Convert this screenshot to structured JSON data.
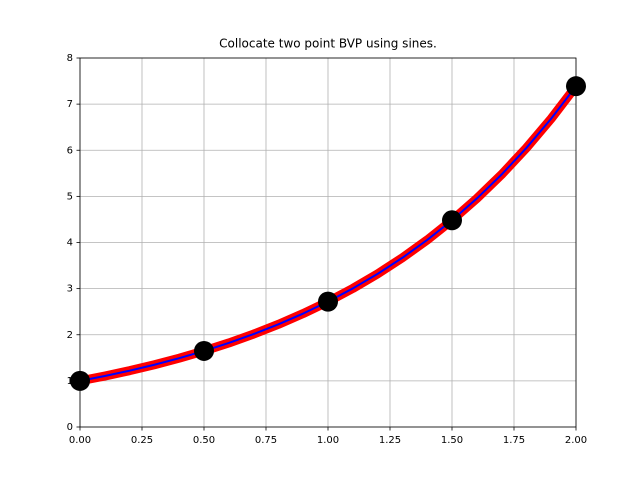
{
  "chart_data": {
    "type": "line",
    "title": "Collocate two point BVP using sines.",
    "series": [
      {
        "color": "#ff0000",
        "style": "line",
        "x": [
          0,
          0.1,
          0.2,
          0.3,
          0.4,
          0.5,
          0.6,
          0.7,
          0.8,
          0.9,
          1.0,
          1.1,
          1.2,
          1.3,
          1.4,
          1.5,
          1.6,
          1.7,
          1.8,
          1.9,
          2.0
        ],
        "values": [
          1,
          1.105,
          1.221,
          1.35,
          1.492,
          1.649,
          1.822,
          2.014,
          2.226,
          2.46,
          2.718,
          3.004,
          3.32,
          3.669,
          4.055,
          4.482,
          4.953,
          5.474,
          6.05,
          6.686,
          7.389
        ]
      },
      {
        "color": "#0000ff",
        "style": "line",
        "x": [
          0,
          0.1,
          0.2,
          0.3,
          0.4,
          0.5,
          0.6,
          0.7,
          0.8,
          0.9,
          1.0,
          1.1,
          1.2,
          1.3,
          1.4,
          1.5,
          1.6,
          1.7,
          1.8,
          1.9,
          2.0
        ],
        "values": [
          1,
          1.105,
          1.221,
          1.35,
          1.492,
          1.649,
          1.822,
          2.014,
          2.226,
          2.46,
          2.718,
          3.004,
          3.32,
          3.669,
          4.055,
          4.482,
          4.953,
          5.474,
          6.05,
          6.686,
          7.389
        ]
      },
      {
        "color": "#000000",
        "style": "marker",
        "x": [
          0,
          0.5,
          1.0,
          1.5,
          2.0
        ],
        "values": [
          1,
          1.649,
          2.718,
          4.482,
          7.389
        ]
      }
    ],
    "xlim": [
      0,
      2
    ],
    "ylim": [
      0,
      8
    ],
    "xticks": [
      {
        "value": 0,
        "label": "0.00"
      },
      {
        "value": 0.25,
        "label": "0.25"
      },
      {
        "value": 0.5,
        "label": "0.50"
      },
      {
        "value": 0.75,
        "label": "0.75"
      },
      {
        "value": 1,
        "label": "1.00"
      },
      {
        "value": 1.25,
        "label": "1.25"
      },
      {
        "value": 1.5,
        "label": "1.50"
      },
      {
        "value": 1.75,
        "label": "1.75"
      },
      {
        "value": 2,
        "label": "2.00"
      }
    ],
    "yticks": [
      0,
      1,
      2,
      3,
      4,
      5,
      6,
      7,
      8
    ],
    "grid": true
  }
}
